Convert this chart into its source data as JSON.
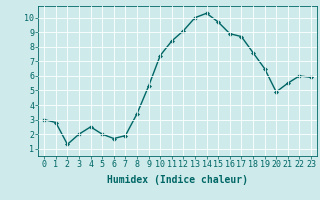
{
  "x": [
    0,
    1,
    2,
    3,
    4,
    5,
    6,
    7,
    8,
    9,
    10,
    11,
    12,
    13,
    14,
    15,
    16,
    17,
    18,
    19,
    20,
    21,
    22,
    23
  ],
  "y": [
    3.0,
    2.8,
    1.3,
    2.0,
    2.5,
    2.0,
    1.7,
    1.9,
    3.4,
    5.3,
    7.4,
    8.4,
    9.1,
    10.0,
    10.3,
    9.7,
    8.9,
    8.7,
    7.6,
    6.5,
    4.9,
    5.5,
    6.0,
    5.9
  ],
  "line_color": "#006666",
  "marker": "D",
  "marker_size": 2.0,
  "linewidth": 1.0,
  "xlabel": "Humidex (Indice chaleur)",
  "xlim": [
    -0.5,
    23.5
  ],
  "ylim": [
    0.5,
    10.8
  ],
  "yticks": [
    1,
    2,
    3,
    4,
    5,
    6,
    7,
    8,
    9,
    10
  ],
  "xticks": [
    0,
    1,
    2,
    3,
    4,
    5,
    6,
    7,
    8,
    9,
    10,
    11,
    12,
    13,
    14,
    15,
    16,
    17,
    18,
    19,
    20,
    21,
    22,
    23
  ],
  "background_color": "#ceeaea",
  "grid_color": "#ffffff",
  "tick_color": "#006666",
  "label_fontsize": 7,
  "tick_fontsize": 6
}
